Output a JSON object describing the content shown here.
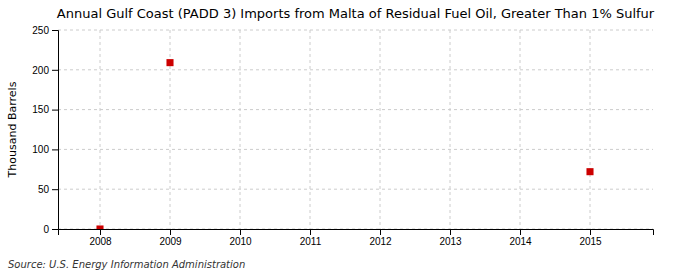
{
  "chart_data": {
    "type": "scatter",
    "title": "Annual Gulf Coast (PADD 3) Imports from Malta of Residual Fuel Oil, Greater Than 1% Sulfur",
    "ylabel": "Thousand Barrels",
    "source": "Source: U.S. Energy Information Administration",
    "x": [
      2008,
      2009,
      2015
    ],
    "values": [
      0,
      209,
      72
    ],
    "color": "#cc0000",
    "marker": "square",
    "xlim": [
      2007.4,
      2015.9
    ],
    "ylim": [
      0,
      250
    ],
    "xticks": [
      2008,
      2009,
      2010,
      2011,
      2012,
      2013,
      2014,
      2015
    ],
    "yticks": [
      0,
      50,
      100,
      150,
      200,
      250
    ],
    "grid": true
  }
}
